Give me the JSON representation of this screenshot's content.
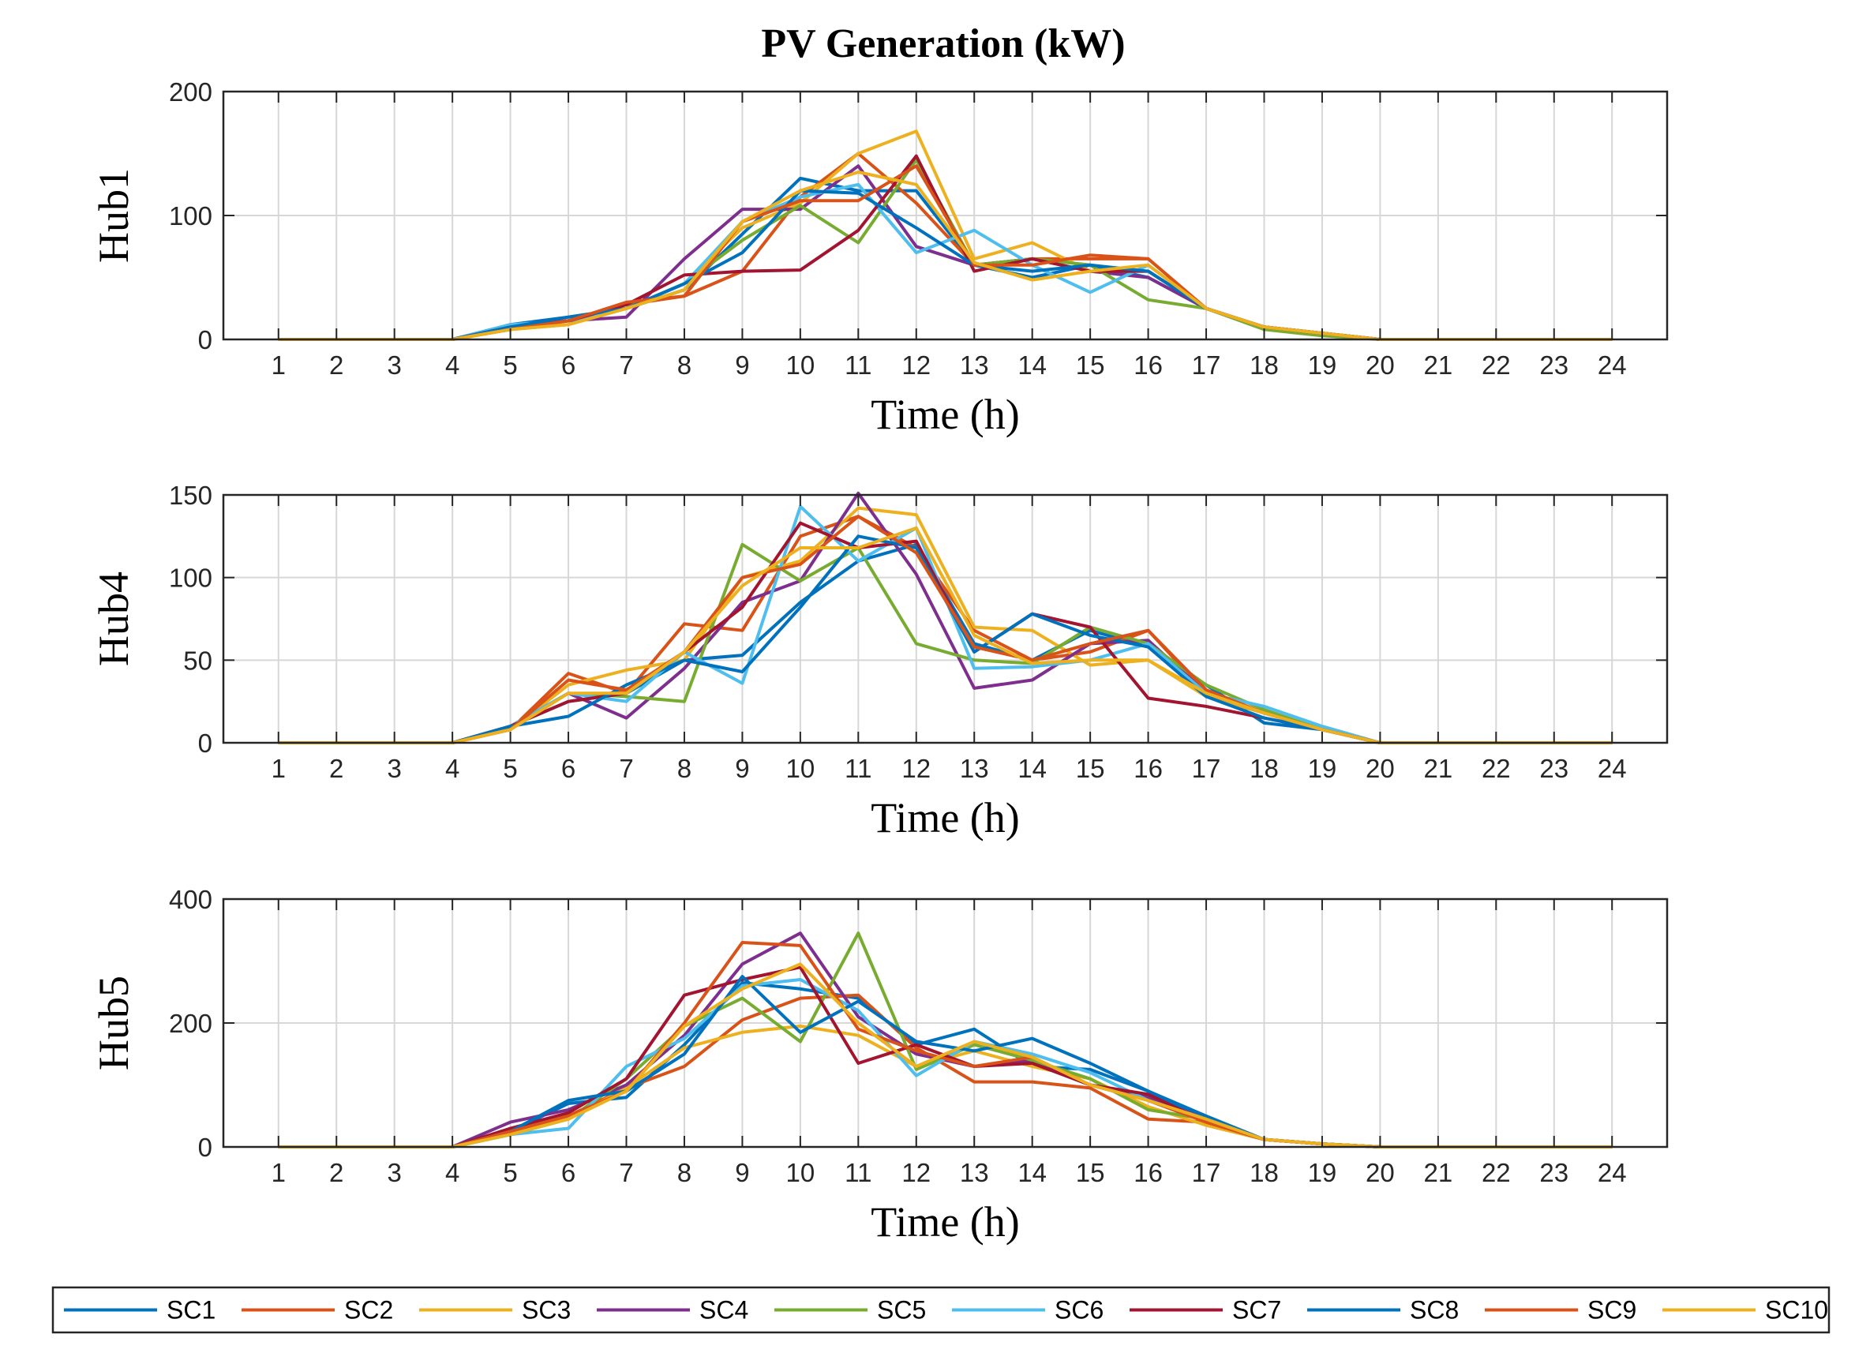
{
  "title": "PV Generation (kW)",
  "legend_series": [
    "SC1",
    "SC2",
    "SC3",
    "SC4",
    "SC5",
    "SC6",
    "SC7",
    "SC8",
    "SC9",
    "SC10"
  ],
  "colors": [
    "#0072BD",
    "#D95319",
    "#EDB120",
    "#7E2F8E",
    "#77AC30",
    "#4DBEEE",
    "#A2142F",
    "#0072BD",
    "#D95319",
    "#EDB120"
  ],
  "chart_data": [
    {
      "type": "line",
      "ylabel": "Hub1",
      "xlabel": "Time (h)",
      "x": [
        1,
        2,
        3,
        4,
        5,
        6,
        7,
        8,
        9,
        10,
        11,
        12,
        13,
        14,
        15,
        16,
        17,
        18,
        19,
        20,
        21,
        22,
        23,
        24
      ],
      "ylim": [
        0,
        200
      ],
      "yticks": [
        0,
        100,
        200
      ],
      "series": [
        {
          "name": "SC1",
          "values": [
            0,
            0,
            0,
            0,
            12,
            18,
            25,
            40,
            85,
            130,
            120,
            120,
            60,
            50,
            60,
            50,
            25,
            10,
            5,
            0,
            0,
            0,
            0,
            0
          ]
        },
        {
          "name": "SC2",
          "values": [
            0,
            0,
            0,
            0,
            8,
            15,
            28,
            35,
            55,
            115,
            150,
            110,
            60,
            65,
            65,
            65,
            25,
            10,
            5,
            0,
            0,
            0,
            0,
            0
          ]
        },
        {
          "name": "SC3",
          "values": [
            0,
            0,
            0,
            0,
            8,
            12,
            25,
            45,
            90,
            110,
            150,
            168,
            65,
            78,
            55,
            55,
            25,
            10,
            5,
            0,
            0,
            0,
            0,
            0
          ]
        },
        {
          "name": "SC4",
          "values": [
            0,
            0,
            0,
            0,
            10,
            15,
            18,
            65,
            105,
            105,
            140,
            75,
            60,
            65,
            55,
            50,
            25,
            10,
            5,
            0,
            0,
            0,
            0,
            0
          ]
        },
        {
          "name": "SC5",
          "values": [
            0,
            0,
            0,
            0,
            10,
            15,
            25,
            45,
            80,
            108,
            78,
            145,
            60,
            65,
            60,
            32,
            25,
            8,
            3,
            0,
            0,
            0,
            0,
            0
          ]
        },
        {
          "name": "SC6",
          "values": [
            0,
            0,
            0,
            0,
            12,
            15,
            25,
            45,
            95,
            115,
            125,
            70,
            88,
            60,
            38,
            60,
            25,
            10,
            5,
            0,
            0,
            0,
            0,
            0
          ]
        },
        {
          "name": "SC7",
          "values": [
            0,
            0,
            0,
            0,
            10,
            15,
            28,
            52,
            55,
            56,
            88,
            148,
            55,
            65,
            55,
            55,
            25,
            10,
            5,
            0,
            0,
            0,
            0,
            0
          ]
        },
        {
          "name": "SC8",
          "values": [
            0,
            0,
            0,
            0,
            10,
            18,
            25,
            45,
            70,
            120,
            118,
            90,
            60,
            55,
            60,
            55,
            25,
            10,
            5,
            0,
            0,
            0,
            0,
            0
          ]
        },
        {
          "name": "SC9",
          "values": [
            0,
            0,
            0,
            0,
            8,
            15,
            30,
            35,
            95,
            112,
            112,
            140,
            60,
            60,
            68,
            65,
            25,
            10,
            5,
            0,
            0,
            0,
            0,
            0
          ]
        },
        {
          "name": "SC10",
          "values": [
            0,
            0,
            0,
            0,
            8,
            12,
            25,
            40,
            95,
            120,
            135,
            125,
            62,
            48,
            55,
            60,
            25,
            10,
            5,
            0,
            0,
            0,
            0,
            0
          ]
        }
      ]
    },
    {
      "type": "line",
      "ylabel": "Hub4",
      "xlabel": "Time (h)",
      "x": [
        1,
        2,
        3,
        4,
        5,
        6,
        7,
        8,
        9,
        10,
        11,
        12,
        13,
        14,
        15,
        16,
        17,
        18,
        19,
        20,
        21,
        22,
        23,
        24
      ],
      "ylim": [
        0,
        150
      ],
      "yticks": [
        0,
        50,
        100,
        150
      ],
      "series": [
        {
          "name": "SC1",
          "values": [
            0,
            0,
            0,
            0,
            10,
            25,
            30,
            50,
            53,
            85,
            110,
            120,
            60,
            50,
            68,
            58,
            35,
            12,
            8,
            0,
            0,
            0,
            0,
            0
          ]
        },
        {
          "name": "SC2",
          "values": [
            0,
            0,
            0,
            0,
            8,
            42,
            30,
            72,
            68,
            125,
            137,
            118,
            68,
            50,
            55,
            68,
            30,
            18,
            8,
            0,
            0,
            0,
            0,
            0
          ]
        },
        {
          "name": "SC3",
          "values": [
            0,
            0,
            0,
            0,
            8,
            35,
            44,
            50,
            100,
            110,
            142,
            138,
            70,
            68,
            47,
            50,
            28,
            18,
            8,
            0,
            0,
            0,
            0,
            0
          ]
        },
        {
          "name": "SC4",
          "values": [
            0,
            0,
            0,
            0,
            10,
            30,
            15,
            45,
            85,
            98,
            151,
            102,
            33,
            38,
            60,
            62,
            30,
            18,
            8,
            0,
            0,
            0,
            0,
            0
          ]
        },
        {
          "name": "SC5",
          "values": [
            0,
            0,
            0,
            0,
            10,
            30,
            28,
            25,
            120,
            98,
            118,
            60,
            50,
            48,
            70,
            60,
            35,
            20,
            8,
            0,
            0,
            0,
            0,
            0
          ]
        },
        {
          "name": "SC6",
          "values": [
            0,
            0,
            0,
            0,
            10,
            30,
            25,
            55,
            36,
            143,
            110,
            130,
            45,
            46,
            50,
            60,
            30,
            22,
            10,
            0,
            0,
            0,
            0,
            0
          ]
        },
        {
          "name": "SC7",
          "values": [
            0,
            0,
            0,
            0,
            10,
            25,
            30,
            55,
            82,
            133,
            118,
            122,
            55,
            78,
            70,
            27,
            22,
            15,
            8,
            0,
            0,
            0,
            0,
            0
          ]
        },
        {
          "name": "SC8",
          "values": [
            0,
            0,
            0,
            0,
            10,
            16,
            35,
            50,
            43,
            82,
            125,
            118,
            55,
            78,
            65,
            58,
            28,
            15,
            8,
            0,
            0,
            0,
            0,
            0
          ]
        },
        {
          "name": "SC9",
          "values": [
            0,
            0,
            0,
            0,
            8,
            38,
            32,
            55,
            100,
            108,
            137,
            115,
            58,
            50,
            60,
            68,
            32,
            18,
            8,
            0,
            0,
            0,
            0,
            0
          ]
        },
        {
          "name": "SC10",
          "values": [
            0,
            0,
            0,
            0,
            8,
            30,
            30,
            55,
            95,
            118,
            118,
            130,
            65,
            48,
            50,
            50,
            30,
            18,
            8,
            0,
            0,
            0,
            0,
            0
          ]
        }
      ]
    },
    {
      "type": "line",
      "ylabel": "Hub5",
      "xlabel": "Time (h)",
      "x": [
        1,
        2,
        3,
        4,
        5,
        6,
        7,
        8,
        9,
        10,
        11,
        12,
        13,
        14,
        15,
        16,
        17,
        18,
        19,
        20,
        21,
        22,
        23,
        24
      ],
      "ylim": [
        0,
        400
      ],
      "yticks": [
        0,
        200,
        400
      ],
      "series": [
        {
          "name": "SC1",
          "values": [
            0,
            0,
            0,
            0,
            25,
            70,
            80,
            165,
            265,
            255,
            240,
            165,
            190,
            130,
            125,
            90,
            45,
            12,
            5,
            0,
            0,
            0,
            0,
            0
          ]
        },
        {
          "name": "SC2",
          "values": [
            0,
            0,
            0,
            0,
            20,
            50,
            95,
            130,
            205,
            240,
            245,
            160,
            105,
            105,
            95,
            45,
            40,
            12,
            5,
            0,
            0,
            0,
            0,
            0
          ]
        },
        {
          "name": "SC3",
          "values": [
            0,
            0,
            0,
            0,
            20,
            45,
            95,
            160,
            185,
            195,
            180,
            130,
            155,
            130,
            110,
            65,
            35,
            12,
            5,
            0,
            0,
            0,
            0,
            0
          ]
        },
        {
          "name": "SC4",
          "values": [
            0,
            0,
            0,
            0,
            40,
            60,
            100,
            180,
            295,
            345,
            210,
            150,
            130,
            140,
            100,
            80,
            45,
            12,
            5,
            0,
            0,
            0,
            0,
            0
          ]
        },
        {
          "name": "SC5",
          "values": [
            0,
            0,
            0,
            0,
            20,
            45,
            110,
            195,
            240,
            170,
            345,
            125,
            165,
            140,
            110,
            60,
            45,
            12,
            5,
            0,
            0,
            0,
            0,
            0
          ]
        },
        {
          "name": "SC6",
          "values": [
            0,
            0,
            0,
            0,
            20,
            30,
            130,
            175,
            260,
            270,
            220,
            115,
            170,
            150,
            120,
            75,
            45,
            12,
            5,
            0,
            0,
            0,
            0,
            0
          ]
        },
        {
          "name": "SC7",
          "values": [
            0,
            0,
            0,
            0,
            30,
            55,
            110,
            245,
            270,
            290,
            135,
            165,
            130,
            135,
            100,
            85,
            40,
            12,
            5,
            0,
            0,
            0,
            0,
            0
          ]
        },
        {
          "name": "SC8",
          "values": [
            0,
            0,
            0,
            0,
            25,
            75,
            90,
            150,
            275,
            185,
            235,
            170,
            155,
            175,
            135,
            90,
            50,
            12,
            5,
            0,
            0,
            0,
            0,
            0
          ]
        },
        {
          "name": "SC9",
          "values": [
            0,
            0,
            0,
            0,
            25,
            50,
            90,
            200,
            330,
            325,
            190,
            155,
            130,
            145,
            100,
            75,
            40,
            12,
            5,
            0,
            0,
            0,
            0,
            0
          ]
        },
        {
          "name": "SC10",
          "values": [
            0,
            0,
            0,
            0,
            20,
            45,
            90,
            195,
            255,
            295,
            200,
            130,
            170,
            145,
            100,
            75,
            45,
            12,
            5,
            0,
            0,
            0,
            0,
            0
          ]
        }
      ]
    }
  ]
}
